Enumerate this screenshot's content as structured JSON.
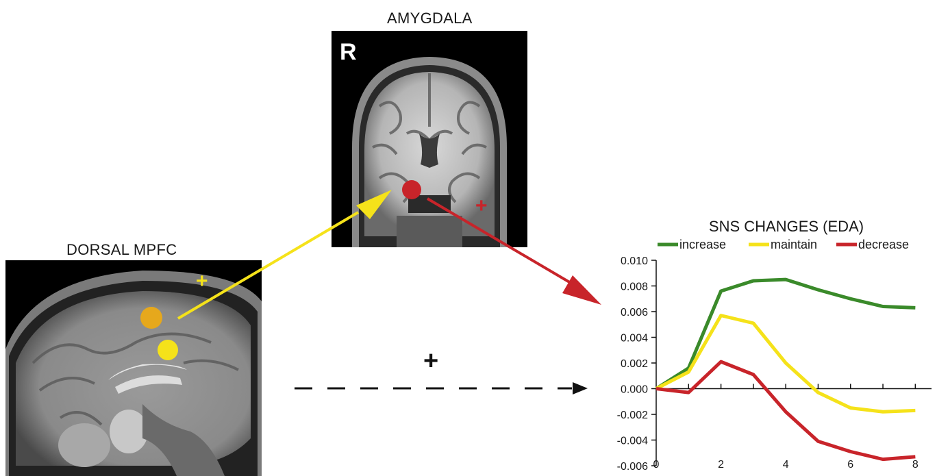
{
  "amygdala_panel": {
    "title": "AMYGDALA",
    "orientation_label": "R",
    "sign": "+"
  },
  "mpfc_panel": {
    "title": "DORSAL MPFC",
    "sign": "+"
  },
  "middle": {
    "sign": "+"
  },
  "colors": {
    "increase": "#3a8a2a",
    "maintain": "#f5e21a",
    "decrease": "#c8242a",
    "yellow_arrow": "#f5e21a",
    "red_arrow": "#c8242a",
    "mpfc_dot_upper": "#e6a81c",
    "mpfc_dot_lower": "#f5e21a",
    "amygdala_dot": "#c8242a"
  },
  "chart_data": {
    "type": "line",
    "title": "SNS CHANGES (EDA)",
    "x": [
      0,
      1,
      2,
      3,
      4,
      5,
      6,
      7,
      8
    ],
    "x_tick_labels": [
      "0",
      "2",
      "4",
      "6",
      "8"
    ],
    "y_tick_labels": [
      "0.010",
      "0.008",
      "0.006",
      "0.004",
      "0.002",
      "0.000",
      "-0.002",
      "-0.004",
      "-0.006"
    ],
    "ylim": [
      -0.006,
      0.01
    ],
    "xlim": [
      0,
      8.5
    ],
    "legend_position": "top",
    "series": [
      {
        "name": "increase",
        "color": "#3a8a2a",
        "values": [
          0.0,
          0.0016,
          0.0076,
          0.0084,
          0.0085,
          0.0077,
          0.007,
          0.0064,
          0.0063
        ]
      },
      {
        "name": "maintain",
        "color": "#f5e21a",
        "values": [
          0.0,
          0.0013,
          0.0057,
          0.0051,
          0.002,
          -0.0003,
          -0.0015,
          -0.0018,
          -0.0017
        ]
      },
      {
        "name": "decrease",
        "color": "#c8242a",
        "values": [
          0.0,
          -0.0003,
          0.0021,
          0.0011,
          -0.0018,
          -0.0041,
          -0.0049,
          -0.0055,
          -0.0053
        ]
      }
    ]
  }
}
